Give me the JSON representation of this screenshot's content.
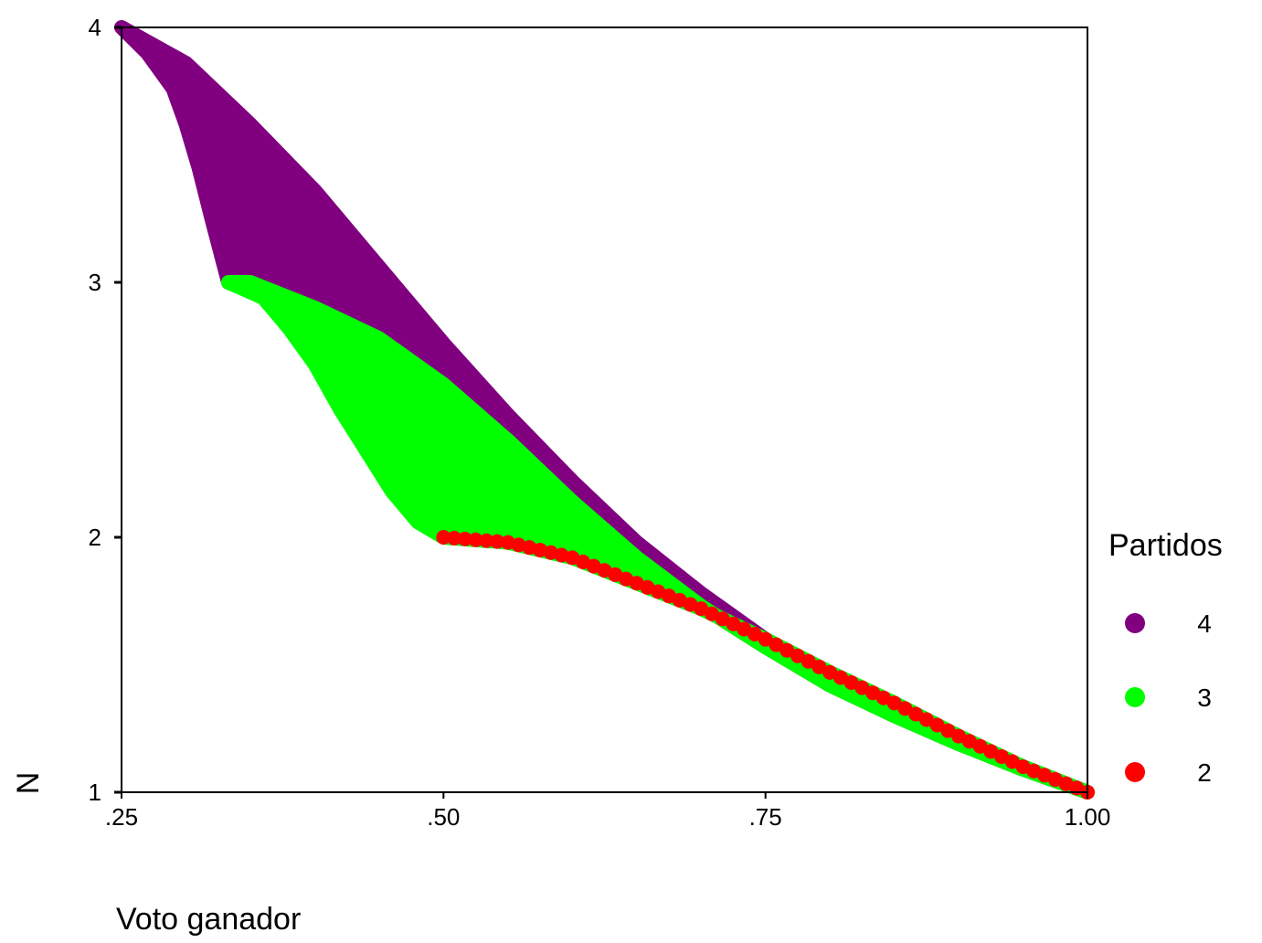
{
  "chart_data": {
    "type": "scatter",
    "xlabel": "Voto ganador",
    "ylabel": "N",
    "xlim": [
      0.25,
      1.0
    ],
    "ylim": [
      1,
      4
    ],
    "x_ticks": [
      ".25",
      ".50",
      ".75",
      "1.00"
    ],
    "x_tick_values": [
      0.25,
      0.5,
      0.75,
      1.0
    ],
    "y_ticks": [
      "1",
      "2",
      "3",
      "4"
    ],
    "y_tick_values": [
      1,
      2,
      3,
      4
    ],
    "grid": false,
    "legend": {
      "title": "Partidos",
      "placement": "right"
    },
    "series": [
      {
        "name": "4",
        "color": "#800080",
        "description": "region of feasible (voto ganador, N) for 4 parties",
        "upper_boundary": [
          [
            0.25,
            4.0
          ],
          [
            0.3,
            3.86
          ],
          [
            0.35,
            3.62
          ],
          [
            0.4,
            3.36
          ],
          [
            0.45,
            3.06
          ],
          [
            0.5,
            2.76
          ],
          [
            0.55,
            2.48
          ],
          [
            0.6,
            2.22
          ],
          [
            0.65,
            1.98
          ],
          [
            0.7,
            1.78
          ],
          [
            0.75,
            1.6
          ],
          [
            0.8,
            1.45
          ],
          [
            0.85,
            1.32
          ],
          [
            0.9,
            1.21
          ],
          [
            0.95,
            1.1
          ],
          [
            1.0,
            1.0
          ]
        ],
        "lower_boundary": [
          [
            0.25,
            4.0
          ],
          [
            0.27,
            3.9
          ],
          [
            0.29,
            3.76
          ],
          [
            0.3,
            3.62
          ],
          [
            0.31,
            3.45
          ],
          [
            0.32,
            3.25
          ],
          [
            0.333,
            3.0
          ]
        ]
      },
      {
        "name": "3",
        "color": "#00ff00",
        "description": "region of feasible (voto ganador, N) for 3 parties",
        "upper_boundary": [
          [
            0.333,
            3.0
          ],
          [
            0.35,
            3.0
          ],
          [
            0.4,
            2.9
          ],
          [
            0.45,
            2.78
          ],
          [
            0.5,
            2.6
          ],
          [
            0.55,
            2.38
          ],
          [
            0.6,
            2.14
          ],
          [
            0.65,
            1.92
          ],
          [
            0.7,
            1.73
          ],
          [
            0.75,
            1.57
          ],
          [
            0.8,
            1.42
          ],
          [
            0.85,
            1.3
          ],
          [
            0.9,
            1.19
          ],
          [
            0.95,
            1.09
          ],
          [
            1.0,
            1.0
          ]
        ],
        "lower_boundary": [
          [
            0.333,
            3.0
          ],
          [
            0.36,
            2.94
          ],
          [
            0.38,
            2.82
          ],
          [
            0.4,
            2.68
          ],
          [
            0.42,
            2.5
          ],
          [
            0.44,
            2.34
          ],
          [
            0.46,
            2.18
          ],
          [
            0.48,
            2.06
          ],
          [
            0.5,
            2.0
          ]
        ]
      },
      {
        "name": "2",
        "color": "#ff0000",
        "description": "curve for 2 parties",
        "points": [
          [
            0.5,
            2.0
          ],
          [
            0.55,
            1.98
          ],
          [
            0.6,
            1.92
          ],
          [
            0.65,
            1.82
          ],
          [
            0.7,
            1.72
          ],
          [
            0.75,
            1.6
          ],
          [
            0.8,
            1.47
          ],
          [
            0.85,
            1.35
          ],
          [
            0.9,
            1.22
          ],
          [
            0.95,
            1.1
          ],
          [
            1.0,
            1.0
          ]
        ]
      }
    ]
  }
}
